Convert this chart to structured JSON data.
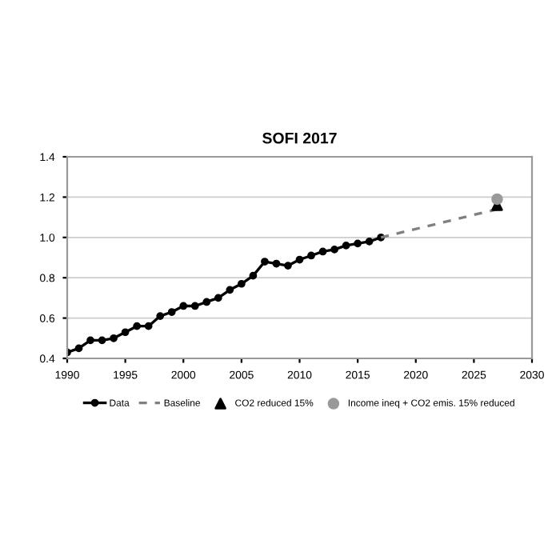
{
  "chart_data": {
    "type": "line",
    "title": "SOFI 2017",
    "xlim": [
      1990,
      2030
    ],
    "xticks": [
      1990,
      1995,
      2000,
      2005,
      2010,
      2015,
      2020,
      2025,
      2030
    ],
    "ylim": [
      0.4,
      1.4
    ],
    "yticks": [
      {
        "value": 0.4,
        "label": "0.4"
      },
      {
        "value": 0.6,
        "label": "0.6"
      },
      {
        "value": 0.8,
        "label": "0.8"
      },
      {
        "value": 1.0,
        "label": "1.0"
      },
      {
        "value": 1.2,
        "label": "1.2"
      },
      {
        "value": 1.4,
        "label": "1.4"
      }
    ],
    "grid": "y",
    "legend": "bottom",
    "series": [
      {
        "name": "Data",
        "color": "#000000",
        "marker": "circle",
        "line_style": "solid",
        "x": [
          1990,
          1991,
          1992,
          1993,
          1994,
          1995,
          1996,
          1997,
          1998,
          1999,
          2000,
          2001,
          2002,
          2003,
          2004,
          2005,
          2006,
          2007,
          2008,
          2009,
          2010,
          2011,
          2012,
          2013,
          2014,
          2015,
          2016,
          2017
        ],
        "values": [
          0.43,
          0.45,
          0.49,
          0.49,
          0.5,
          0.53,
          0.56,
          0.56,
          0.61,
          0.63,
          0.66,
          0.66,
          0.68,
          0.7,
          0.74,
          0.77,
          0.81,
          0.88,
          0.87,
          0.86,
          0.89,
          0.91,
          0.93,
          0.94,
          0.96,
          0.97,
          0.98,
          1.0
        ]
      },
      {
        "name": "Baseline",
        "color": "#808080",
        "marker": "none",
        "line_style": "dashed",
        "x": [
          2017,
          2027
        ],
        "values": [
          1.0,
          1.14
        ]
      },
      {
        "name": "CO2 reduced 15%",
        "type": "scatter",
        "color": "#000000",
        "marker": "triangle",
        "x": [
          2027
        ],
        "values": [
          1.16
        ]
      },
      {
        "name": "Income ineq + CO2 emis. 15% reduced",
        "type": "scatter",
        "color": "#999999",
        "marker": "circle",
        "x": [
          2027
        ],
        "values": [
          1.19
        ]
      }
    ]
  }
}
